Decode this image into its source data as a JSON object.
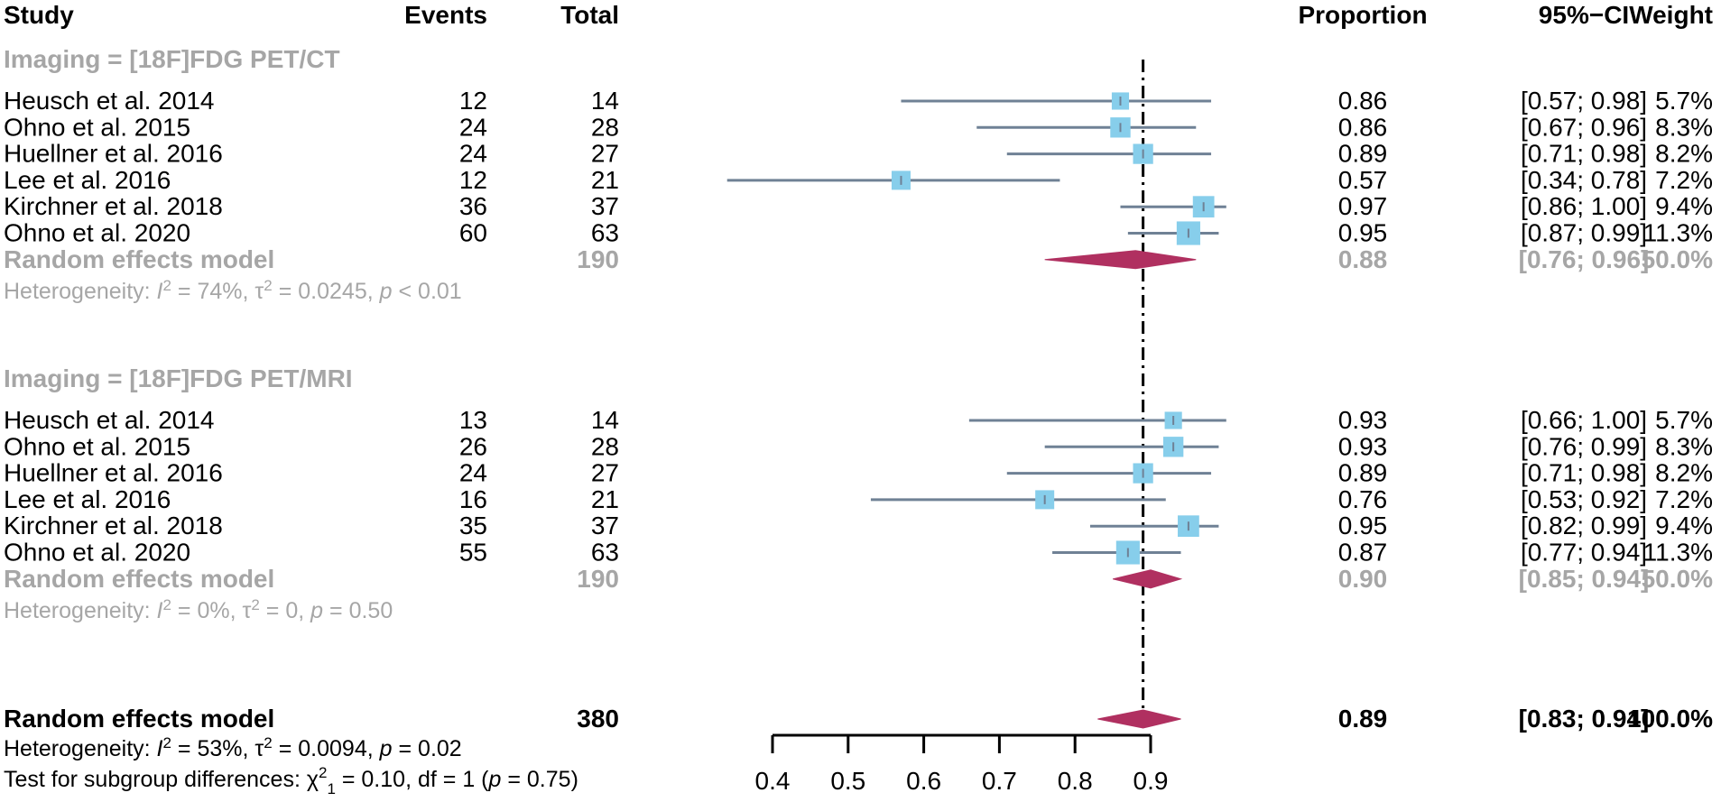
{
  "chart_data": {
    "type": "forest",
    "title": "",
    "xlabel": "",
    "ylabel": "",
    "xlim": [
      0.4,
      0.9
    ],
    "x_ticks": [
      "0.4",
      "0.5",
      "0.6",
      "0.7",
      "0.8",
      "0.9"
    ],
    "reference_line": 0.89,
    "headers": {
      "study": "Study",
      "events": "Events",
      "total": "Total",
      "proportion": "Proportion",
      "ci": "95%−CI",
      "weight": "Weight"
    },
    "subgroups": [
      {
        "label": "Imaging = [18F]FDG PET/CT",
        "studies": [
          {
            "study": "Heusch et al. 2014",
            "events": "12",
            "total": "14",
            "prop": 0.86,
            "lower": 0.57,
            "upper": 0.98,
            "prop_text": "0.86",
            "ci_text": "[0.57; 0.98]",
            "weight_text": "5.7%",
            "weight": 5.7
          },
          {
            "study": "Ohno et al. 2015",
            "events": "24",
            "total": "28",
            "prop": 0.86,
            "lower": 0.67,
            "upper": 0.96,
            "prop_text": "0.86",
            "ci_text": "[0.67; 0.96]",
            "weight_text": "8.3%",
            "weight": 8.3
          },
          {
            "study": "Huellner et al. 2016",
            "events": "24",
            "total": "27",
            "prop": 0.89,
            "lower": 0.71,
            "upper": 0.98,
            "prop_text": "0.89",
            "ci_text": "[0.71; 0.98]",
            "weight_text": "8.2%",
            "weight": 8.2
          },
          {
            "study": "Lee et al. 2016",
            "events": "12",
            "total": "21",
            "prop": 0.57,
            "lower": 0.34,
            "upper": 0.78,
            "prop_text": "0.57",
            "ci_text": "[0.34; 0.78]",
            "weight_text": "7.2%",
            "weight": 7.2
          },
          {
            "study": "Kirchner et al. 2018",
            "events": "36",
            "total": "37",
            "prop": 0.97,
            "lower": 0.86,
            "upper": 1.0,
            "prop_text": "0.97",
            "ci_text": "[0.86; 1.00]",
            "weight_text": "9.4%",
            "weight": 9.4
          },
          {
            "study": "Ohno et al. 2020",
            "events": "60",
            "total": "63",
            "prop": 0.95,
            "lower": 0.87,
            "upper": 0.99,
            "prop_text": "0.95",
            "ci_text": "[0.87; 0.99]",
            "weight_text": "11.3%",
            "weight": 11.3
          }
        ],
        "model": {
          "label": "Random effects model",
          "total": "190",
          "prop": 0.88,
          "lower": 0.76,
          "upper": 0.96,
          "prop_text": "0.88",
          "ci_text": "[0.76; 0.96]",
          "weight_text": "50.0%"
        },
        "heterogeneity": {
          "prefix": "Heterogeneity: ",
          "i2": "74%",
          "tau2": "0.0245",
          "p_op": " < ",
          "p": "0.01"
        }
      },
      {
        "label": "Imaging = [18F]FDG PET/MRI",
        "studies": [
          {
            "study": "Heusch et al. 2014",
            "events": "13",
            "total": "14",
            "prop": 0.93,
            "lower": 0.66,
            "upper": 1.0,
            "prop_text": "0.93",
            "ci_text": "[0.66; 1.00]",
            "weight_text": "5.7%",
            "weight": 5.7
          },
          {
            "study": "Ohno et al. 2015",
            "events": "26",
            "total": "28",
            "prop": 0.93,
            "lower": 0.76,
            "upper": 0.99,
            "prop_text": "0.93",
            "ci_text": "[0.76; 0.99]",
            "weight_text": "8.3%",
            "weight": 8.3
          },
          {
            "study": "Huellner et al. 2016",
            "events": "24",
            "total": "27",
            "prop": 0.89,
            "lower": 0.71,
            "upper": 0.98,
            "prop_text": "0.89",
            "ci_text": "[0.71; 0.98]",
            "weight_text": "8.2%",
            "weight": 8.2
          },
          {
            "study": "Lee et al. 2016",
            "events": "16",
            "total": "21",
            "prop": 0.76,
            "lower": 0.53,
            "upper": 0.92,
            "prop_text": "0.76",
            "ci_text": "[0.53; 0.92]",
            "weight_text": "7.2%",
            "weight": 7.2
          },
          {
            "study": "Kirchner et al. 2018",
            "events": "35",
            "total": "37",
            "prop": 0.95,
            "lower": 0.82,
            "upper": 0.99,
            "prop_text": "0.95",
            "ci_text": "[0.82; 0.99]",
            "weight_text": "9.4%",
            "weight": 9.4
          },
          {
            "study": "Ohno et al. 2020",
            "events": "55",
            "total": "63",
            "prop": 0.87,
            "lower": 0.77,
            "upper": 0.94,
            "prop_text": "0.87",
            "ci_text": "[0.77; 0.94]",
            "weight_text": "11.3%",
            "weight": 11.3
          }
        ],
        "model": {
          "label": "Random effects model",
          "total": "190",
          "prop": 0.9,
          "lower": 0.85,
          "upper": 0.94,
          "prop_text": "0.90",
          "ci_text": "[0.85; 0.94]",
          "weight_text": "50.0%"
        },
        "heterogeneity": {
          "prefix": "Heterogeneity: ",
          "i2": "0%",
          "tau2": "0",
          "p_op": " = ",
          "p": "0.50"
        }
      }
    ],
    "overall": {
      "label": "Random effects model",
      "total": "380",
      "prop": 0.89,
      "lower": 0.83,
      "upper": 0.94,
      "prop_text": "0.89",
      "ci_text": "[0.83; 0.94]",
      "weight_text": "100.0%",
      "heterogeneity": {
        "prefix": "Heterogeneity: ",
        "i2": "53%",
        "tau2": "0.0094",
        "p_op": " = ",
        "p": "0.02"
      },
      "subgroup_test": {
        "prefix": "Test for subgroup differences: ",
        "chi2": "0.10",
        "df": "1",
        "p": "0.75"
      }
    },
    "colors": {
      "square": "#87ceeb",
      "ci_line": "#6f8195",
      "diamond": "#b03060",
      "subgroup_text": "#a6a6a6",
      "text": "#000000"
    }
  }
}
